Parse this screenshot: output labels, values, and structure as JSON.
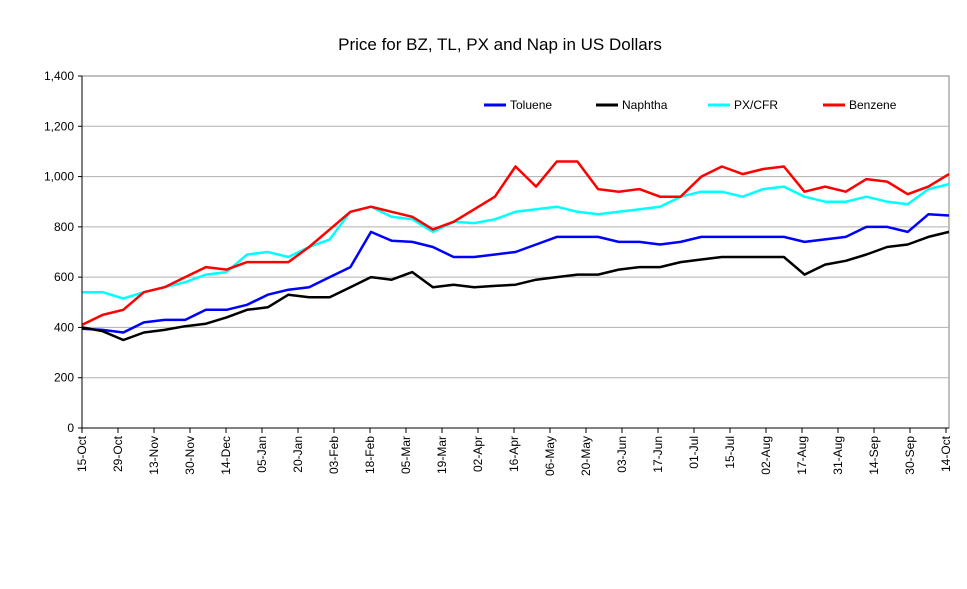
{
  "chart_data": {
    "type": "line",
    "title": "Price for BZ, TL, PX and Nap in US Dollars",
    "xlabel": "",
    "ylabel": "",
    "ylim": [
      0,
      1400
    ],
    "yticks": [
      0,
      200,
      400,
      600,
      800,
      1000,
      1200,
      1400
    ],
    "ytick_labels": [
      "0",
      "200",
      "400",
      "600",
      "800",
      "1,000",
      "1,200",
      "1,400"
    ],
    "x_tick_labels": [
      "15-Oct",
      "29-Oct",
      "13-Nov",
      "30-Nov",
      "14-Dec",
      "05-Jan",
      "20-Jan",
      "03-Feb",
      "18-Feb",
      "05-Mar",
      "19-Mar",
      "02-Apr",
      "16-Apr",
      "06-May",
      "20-May",
      "03-Jun",
      "17-Jun",
      "01-Jul",
      "15-Jul",
      "02-Aug",
      "17-Aug",
      "31-Aug",
      "14-Sep",
      "30-Sep",
      "14-Oct"
    ],
    "grid": true,
    "legend_position": "top-right",
    "series": [
      {
        "name": "Toluene",
        "color": "#0000ff",
        "values": [
          395,
          390,
          380,
          420,
          430,
          430,
          470,
          470,
          490,
          530,
          550,
          560,
          600,
          640,
          780,
          745,
          740,
          720,
          680,
          680,
          690,
          700,
          730,
          760,
          760,
          760,
          740,
          740,
          730,
          740,
          760,
          760,
          760,
          760,
          760,
          740,
          750,
          760,
          800,
          800,
          780,
          850,
          845
        ]
      },
      {
        "name": "Naphtha",
        "color": "#000000",
        "values": [
          400,
          385,
          350,
          380,
          390,
          405,
          415,
          440,
          470,
          480,
          530,
          520,
          520,
          560,
          600,
          590,
          620,
          560,
          570,
          560,
          565,
          570,
          590,
          600,
          610,
          610,
          630,
          640,
          640,
          660,
          670,
          680,
          680,
          680,
          680,
          610,
          650,
          665,
          690,
          720,
          730,
          760,
          780
        ]
      },
      {
        "name": "PX/CFR",
        "color": "#00ffff",
        "values": [
          540,
          540,
          515,
          540,
          560,
          580,
          610,
          620,
          690,
          700,
          680,
          720,
          750,
          860,
          880,
          840,
          830,
          780,
          820,
          815,
          830,
          860,
          870,
          880,
          860,
          850,
          860,
          870,
          880,
          920,
          940,
          940,
          920,
          950,
          960,
          920,
          900,
          900,
          920,
          900,
          890,
          950,
          970
        ]
      },
      {
        "name": "Benzene",
        "color": "#ff0000",
        "values": [
          410,
          450,
          470,
          540,
          560,
          600,
          640,
          630,
          660,
          660,
          660,
          720,
          790,
          860,
          880,
          860,
          840,
          790,
          820,
          870,
          920,
          1040,
          960,
          1060,
          1060,
          950,
          940,
          950,
          920,
          920,
          1000,
          1040,
          1010,
          1030,
          1040,
          940,
          960,
          940,
          990,
          980,
          930,
          960,
          1010
        ]
      }
    ]
  }
}
